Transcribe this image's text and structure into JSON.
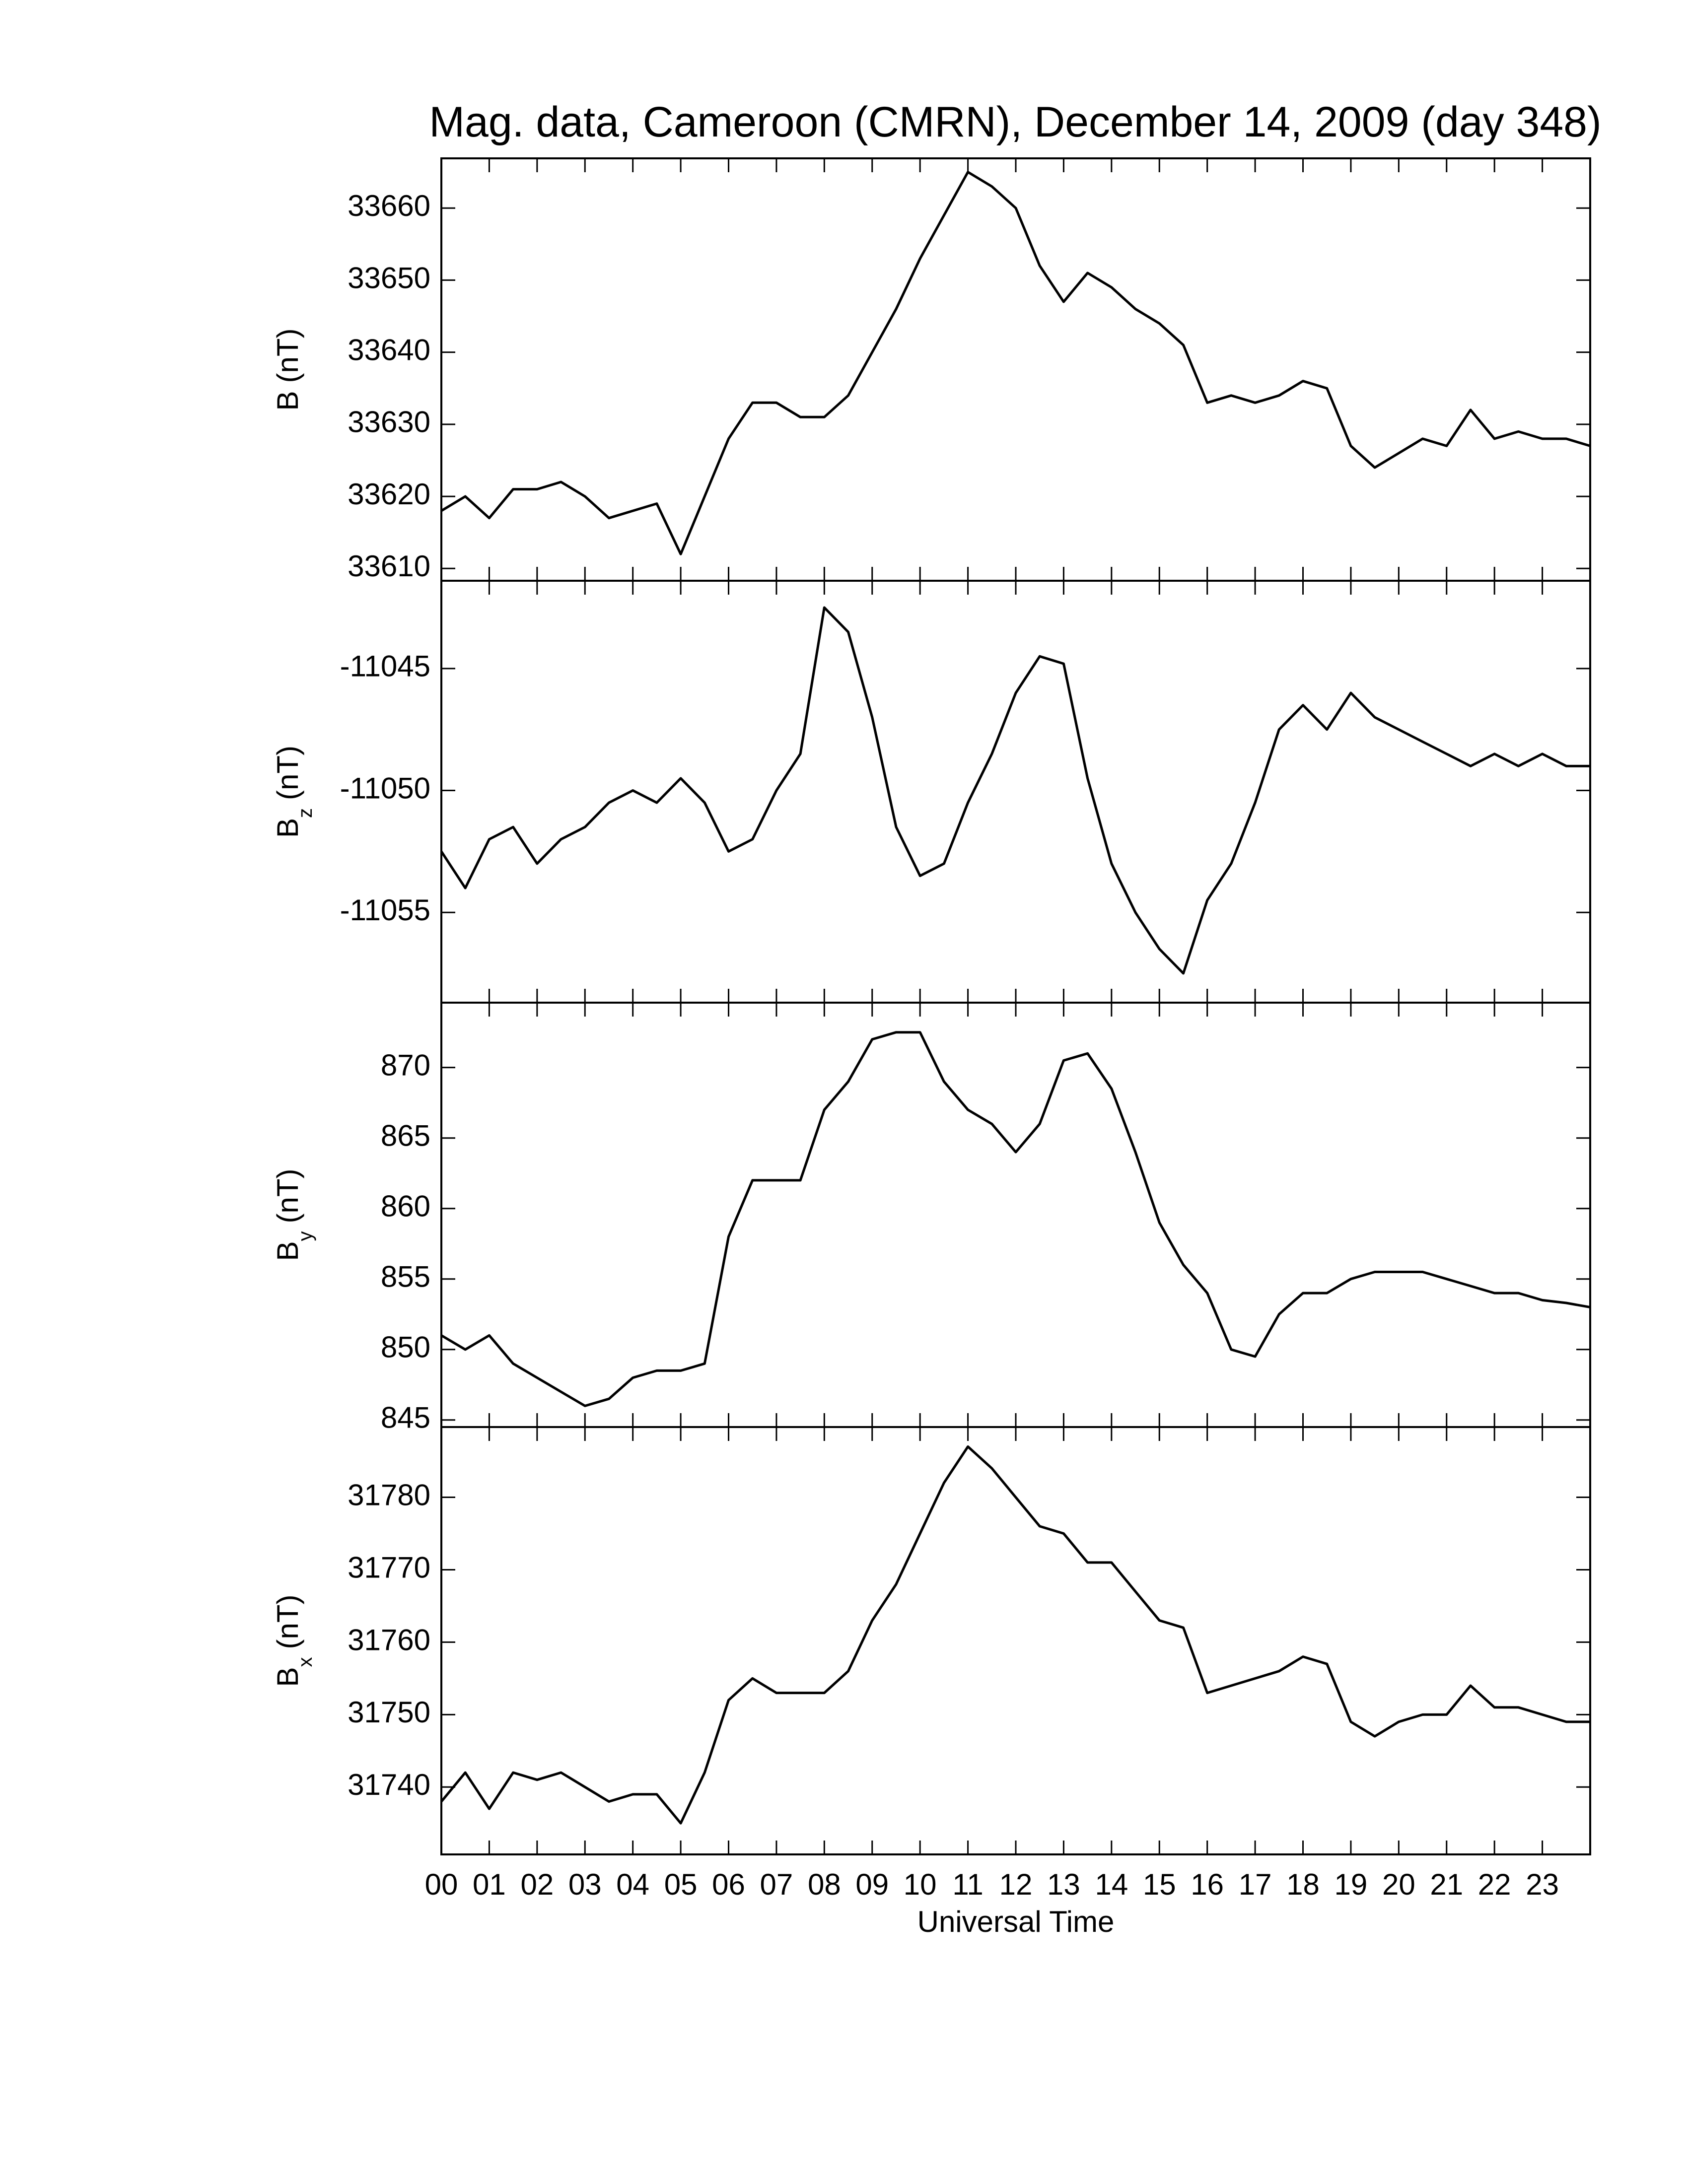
{
  "chart_data": [
    {
      "type": "line",
      "title": "Mag. data, Cameroon (CMRN), December 14, 2009 (day 348)",
      "ylabel": {
        "symbol": "B",
        "unit": "(nT)"
      },
      "color": "#000000",
      "x": [
        0,
        0.5,
        1,
        1.5,
        2,
        2.5,
        3,
        3.5,
        4,
        4.5,
        5,
        5.5,
        6,
        6.5,
        7,
        7.5,
        8,
        8.5,
        9,
        9.5,
        10,
        10.5,
        11,
        11.5,
        12,
        12.5,
        13,
        13.5,
        14,
        14.5,
        15,
        15.5,
        16,
        16.5,
        17,
        17.5,
        18,
        18.5,
        19,
        19.5,
        20,
        20.5,
        21,
        21.5,
        22,
        22.5,
        23,
        23.5,
        24
      ],
      "values": [
        33618,
        33620,
        33617,
        33621,
        33621,
        33622,
        33620,
        33617,
        33618,
        33619,
        33612,
        33620,
        33628,
        33633,
        33633,
        33631,
        33631,
        33634,
        33640,
        33646,
        33653,
        33659,
        33665,
        33663,
        33660,
        33652,
        33647,
        33651,
        33649,
        33646,
        33644,
        33641,
        33633,
        33634,
        33633,
        33634,
        33636,
        33635,
        33627,
        33624,
        33626,
        33628,
        33627,
        33632,
        33628,
        33629,
        33628,
        33628,
        33627
      ],
      "xlim": [
        0,
        24
      ],
      "xticks": [
        0,
        1,
        2,
        3,
        4,
        5,
        6,
        7,
        8,
        9,
        10,
        11,
        12,
        13,
        14,
        15,
        16,
        17,
        18,
        19,
        20,
        21,
        22,
        23
      ],
      "ylim": [
        33608.3,
        33666.9
      ],
      "yticks": [
        33610,
        33620,
        33630,
        33640,
        33650,
        33660
      ]
    },
    {
      "type": "line",
      "ylabel": {
        "symbol": "B",
        "subscript": "z",
        "unit": "(nT)"
      },
      "color": "#000000",
      "x": [
        0,
        0.5,
        1,
        1.5,
        2,
        2.5,
        3,
        3.5,
        4,
        4.5,
        5,
        5.5,
        6,
        6.5,
        7,
        7.5,
        8,
        8.5,
        9,
        9.5,
        10,
        10.5,
        11,
        11.5,
        12,
        12.5,
        13,
        13.5,
        14,
        14.5,
        15,
        15.5,
        16,
        16.5,
        17,
        17.5,
        18,
        18.5,
        19,
        19.5,
        20,
        20.5,
        21,
        21.5,
        22,
        22.5,
        23,
        23.5,
        24
      ],
      "values": [
        -11052.5,
        -11054,
        -11052,
        -11051.5,
        -11053,
        -11052,
        -11051.5,
        -11050.5,
        -11050,
        -11050.5,
        -11049.5,
        -11050.5,
        -11052.5,
        -11052,
        -11050,
        -11048.5,
        -11042.5,
        -11043.5,
        -11047,
        -11051.5,
        -11053.5,
        -11053,
        -11050.5,
        -11048.5,
        -11046,
        -11044.5,
        -11044.8,
        -11049.5,
        -11053,
        -11055,
        -11056.5,
        -11057.5,
        -11054.5,
        -11053,
        -11050.5,
        -11047.5,
        -11046.5,
        -11047.5,
        -11046,
        -11047,
        -11047.5,
        -11048,
        -11048.5,
        -11049,
        -11048.5,
        -11049,
        -11048.5,
        -11049,
        -11049
      ],
      "xlim": [
        0,
        24
      ],
      "xticks": [
        0,
        1,
        2,
        3,
        4,
        5,
        6,
        7,
        8,
        9,
        10,
        11,
        12,
        13,
        14,
        15,
        16,
        17,
        18,
        19,
        20,
        21,
        22,
        23
      ],
      "ylim": [
        -11058.7,
        -11041.4
      ],
      "yticks": [
        -11055,
        -11050,
        -11045
      ]
    },
    {
      "type": "line",
      "ylabel": {
        "symbol": "B",
        "subscript": "y",
        "unit": "(nT)"
      },
      "color": "#000000",
      "x": [
        0,
        0.5,
        1,
        1.5,
        2,
        2.5,
        3,
        3.5,
        4,
        4.5,
        5,
        5.5,
        6,
        6.5,
        7,
        7.5,
        8,
        8.5,
        9,
        9.5,
        10,
        10.5,
        11,
        11.5,
        12,
        12.5,
        13,
        13.5,
        14,
        14.5,
        15,
        15.5,
        16,
        16.5,
        17,
        17.5,
        18,
        18.5,
        19,
        19.5,
        20,
        20.5,
        21,
        21.5,
        22,
        22.5,
        23,
        23.5,
        24
      ],
      "values": [
        851,
        850,
        851,
        849,
        848,
        847,
        846,
        846.5,
        848,
        848.5,
        848.5,
        849,
        858,
        862,
        862,
        862,
        867,
        869,
        872,
        872.5,
        872.5,
        869,
        867,
        866,
        864,
        866,
        870.5,
        871,
        868.5,
        864,
        859,
        856,
        854,
        850,
        849.5,
        852.5,
        854,
        854,
        855,
        855.5,
        855.5,
        855.5,
        855,
        854.5,
        854,
        854,
        853.5,
        853.3,
        853
      ],
      "xlim": [
        0,
        24
      ],
      "xticks": [
        0,
        1,
        2,
        3,
        4,
        5,
        6,
        7,
        8,
        9,
        10,
        11,
        12,
        13,
        14,
        15,
        16,
        17,
        18,
        19,
        20,
        21,
        22,
        23
      ],
      "ylim": [
        844.5,
        874.6
      ],
      "yticks": [
        845,
        850,
        855,
        860,
        865,
        870
      ]
    },
    {
      "type": "line",
      "ylabel": {
        "symbol": "B",
        "subscript": "x",
        "unit": "(nT)"
      },
      "color": "#000000",
      "xlabel": "Universal Time",
      "x": [
        0,
        0.5,
        1,
        1.5,
        2,
        2.5,
        3,
        3.5,
        4,
        4.5,
        5,
        5.5,
        6,
        6.5,
        7,
        7.5,
        8,
        8.5,
        9,
        9.5,
        10,
        10.5,
        11,
        11.5,
        12,
        12.5,
        13,
        13.5,
        14,
        14.5,
        15,
        15.5,
        16,
        16.5,
        17,
        17.5,
        18,
        18.5,
        19,
        19.5,
        20,
        20.5,
        21,
        21.5,
        22,
        22.5,
        23,
        23.5,
        24
      ],
      "values": [
        31738,
        31742,
        31737,
        31742,
        31741,
        31742,
        31740,
        31738,
        31739,
        31739,
        31735,
        31742,
        31752,
        31755,
        31753,
        31753,
        31753,
        31756,
        31763,
        31768,
        31775,
        31782,
        31787,
        31784,
        31780,
        31776,
        31775,
        31771,
        31771,
        31767,
        31763,
        31762,
        31753,
        31754,
        31755,
        31756,
        31758,
        31757,
        31749,
        31747,
        31749,
        31750,
        31750,
        31754,
        31751,
        31751,
        31750,
        31749,
        31749
      ],
      "xlim": [
        0,
        24
      ],
      "xticks": [
        {
          "value": 0,
          "label": "00"
        },
        {
          "value": 1,
          "label": "01"
        },
        {
          "value": 2,
          "label": "02"
        },
        {
          "value": 3,
          "label": "03"
        },
        {
          "value": 4,
          "label": "04"
        },
        {
          "value": 5,
          "label": "05"
        },
        {
          "value": 6,
          "label": "06"
        },
        {
          "value": 7,
          "label": "07"
        },
        {
          "value": 8,
          "label": "08"
        },
        {
          "value": 9,
          "label": "09"
        },
        {
          "value": 10,
          "label": "10"
        },
        {
          "value": 11,
          "label": "11"
        },
        {
          "value": 12,
          "label": "12"
        },
        {
          "value": 13,
          "label": "13"
        },
        {
          "value": 14,
          "label": "14"
        },
        {
          "value": 15,
          "label": "15"
        },
        {
          "value": 16,
          "label": "16"
        },
        {
          "value": 17,
          "label": "17"
        },
        {
          "value": 18,
          "label": "18"
        },
        {
          "value": 19,
          "label": "19"
        },
        {
          "value": 20,
          "label": "20"
        },
        {
          "value": 21,
          "label": "21"
        },
        {
          "value": 22,
          "label": "22"
        },
        {
          "value": 23,
          "label": "23"
        }
      ],
      "ylim": [
        31730.7,
        31789.7
      ],
      "yticks": [
        31740,
        31750,
        31760,
        31770,
        31780
      ]
    }
  ]
}
